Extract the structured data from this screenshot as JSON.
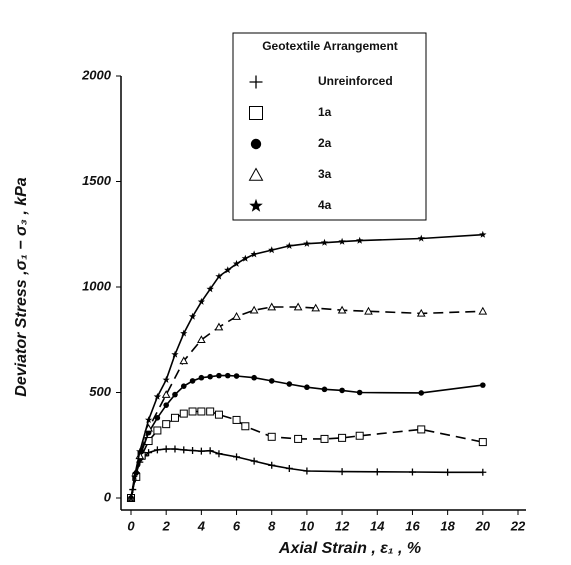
{
  "chart_data": {
    "type": "line",
    "x_label": "Axial Strain , ε₁ , %",
    "y_label": "Deviator Stress ,σ₁ − σ₃ , kPa",
    "legend_title": "Geotextile Arrangement",
    "xlim": [
      0,
      22
    ],
    "xticks": [
      0,
      2,
      4,
      6,
      8,
      10,
      12,
      14,
      16,
      18,
      20,
      22
    ],
    "ylim": [
      0,
      2000
    ],
    "yticks": [
      0,
      500,
      1000,
      1500,
      2000
    ],
    "series": [
      {
        "name": "Unreinforced",
        "color": "#000000",
        "marker": "plus",
        "dashed": false,
        "x": [
          0,
          0.1,
          0.3,
          0.5,
          0.8,
          1,
          1.5,
          2,
          2.5,
          3,
          3.5,
          4,
          4.5,
          5,
          6,
          7,
          8,
          9,
          10,
          12,
          14,
          16,
          18,
          20
        ],
        "values": [
          0,
          40,
          120,
          170,
          200,
          215,
          228,
          232,
          232,
          228,
          225,
          222,
          224,
          210,
          195,
          175,
          155,
          140,
          128,
          125,
          124,
          123,
          122,
          122
        ]
      },
      {
        "name": "1a",
        "color": "#000000",
        "marker": "square",
        "dashed": true,
        "x": [
          0,
          0.3,
          0.6,
          1,
          1.5,
          2,
          2.5,
          3,
          3.5,
          4,
          4.5,
          5,
          6,
          6.5,
          8,
          9.5,
          11,
          12,
          13,
          16.5,
          20
        ],
        "values": [
          0,
          100,
          200,
          270,
          320,
          350,
          380,
          400,
          410,
          410,
          410,
          395,
          370,
          340,
          290,
          280,
          280,
          285,
          295,
          325,
          265
        ]
      },
      {
        "name": "2a",
        "color": "#000000",
        "marker": "circle",
        "dashed": false,
        "x": [
          0,
          0.3,
          0.6,
          1,
          1.5,
          2,
          2.5,
          3,
          3.5,
          4,
          4.5,
          5,
          5.5,
          6,
          7,
          8,
          9,
          10,
          11,
          12,
          13,
          16.5,
          20
        ],
        "values": [
          0,
          120,
          220,
          310,
          380,
          440,
          490,
          530,
          555,
          570,
          575,
          580,
          580,
          578,
          570,
          555,
          540,
          525,
          515,
          510,
          500,
          498,
          535
        ]
      },
      {
        "name": "3a",
        "color": "#000000",
        "marker": "triangle",
        "dashed": true,
        "x": [
          0,
          0.5,
          1,
          2,
          3,
          4,
          5,
          6,
          7,
          8,
          9.5,
          10.5,
          12,
          13.5,
          16.5,
          20
        ],
        "values": [
          0,
          200,
          330,
          490,
          650,
          750,
          810,
          860,
          890,
          905,
          905,
          900,
          890,
          885,
          875,
          885
        ]
      },
      {
        "name": "4a",
        "color": "#000000",
        "marker": "star",
        "dashed": false,
        "x": [
          0,
          0.2,
          0.5,
          1,
          1.5,
          2,
          2.5,
          3,
          3.5,
          4,
          4.5,
          5,
          5.5,
          6,
          6.5,
          7,
          8,
          9,
          10,
          11,
          12,
          13,
          16.5,
          20
        ],
        "values": [
          0,
          100,
          220,
          370,
          480,
          560,
          680,
          780,
          860,
          930,
          990,
          1050,
          1080,
          1110,
          1135,
          1155,
          1175,
          1195,
          1205,
          1210,
          1215,
          1220,
          1230,
          1248
        ]
      }
    ]
  }
}
